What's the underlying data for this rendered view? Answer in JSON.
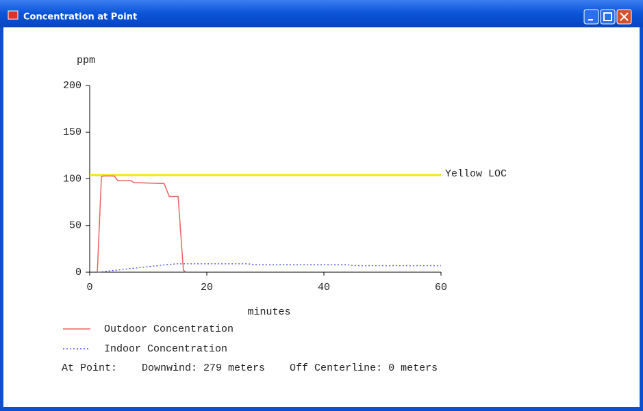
{
  "window": {
    "title": "Concentration at Point"
  },
  "chart_data": {
    "type": "line",
    "ylabel": "ppm",
    "xlabel": "minutes",
    "xlim": [
      0,
      60
    ],
    "ylim": [
      0,
      200
    ],
    "xticks": [
      0,
      20,
      40,
      60
    ],
    "yticks": [
      0,
      50,
      100,
      150,
      200
    ],
    "threshold": {
      "name": "Yellow LOC",
      "value": 104,
      "color": "#f5e600"
    },
    "series": [
      {
        "name": "Outdoor Concentration",
        "color": "#f06060",
        "dash": "solid",
        "x": [
          1.3,
          2.0,
          2.3,
          4.2,
          4.8,
          7.1,
          7.5,
          12.7,
          13.6,
          15.1,
          16.0,
          16.5
        ],
        "values": [
          0,
          102,
          103,
          103,
          98,
          98,
          96,
          95,
          81,
          81,
          2,
          0
        ]
      },
      {
        "name": "Indoor Concentration",
        "color": "#5555ee",
        "dash": "dotted",
        "x": [
          1.5,
          13,
          15,
          27,
          28,
          44,
          45,
          60
        ],
        "values": [
          0,
          8,
          9,
          9,
          8,
          8,
          7,
          7
        ]
      }
    ],
    "note": "At Point:    Downwind: 279 meters    Off Centerline: 0 meters"
  }
}
